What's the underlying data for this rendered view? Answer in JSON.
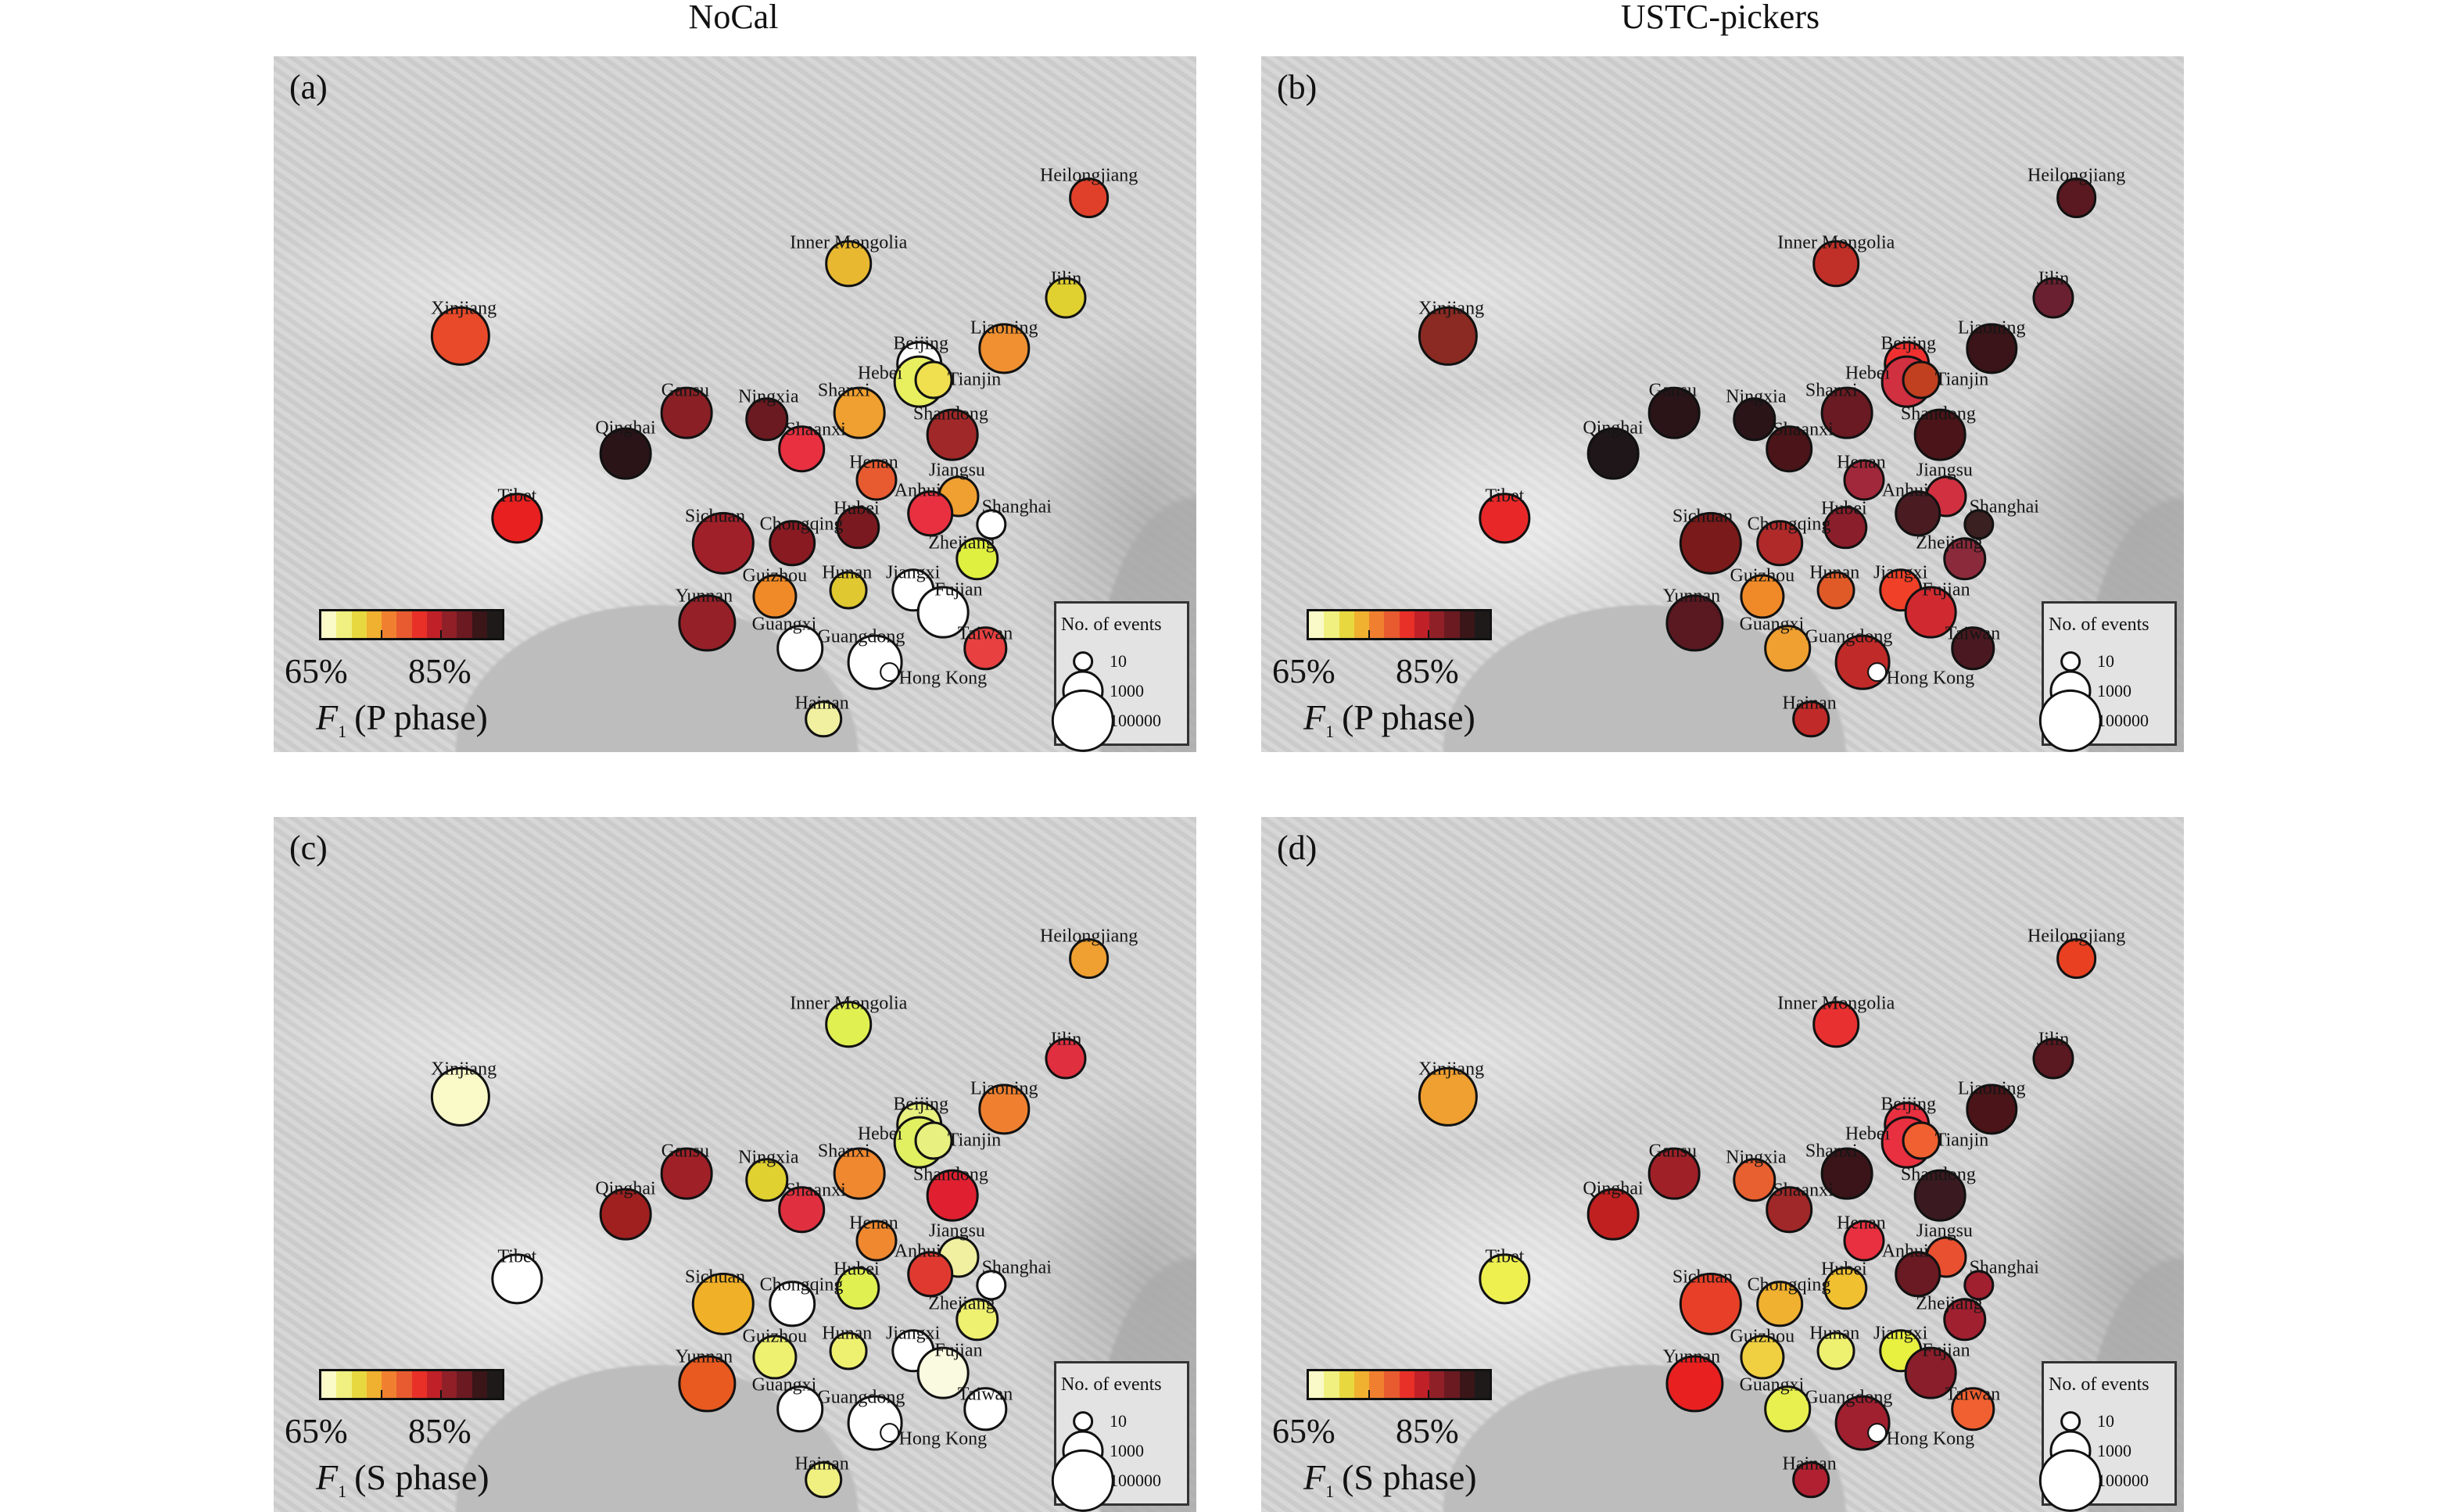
{
  "column_titles": [
    "NoCal",
    "USTC-pickers"
  ],
  "legend": {
    "title": "No. of events",
    "entries": [
      10,
      1000,
      100000
    ]
  },
  "colorbar": {
    "labels": [
      "65%",
      "85%"
    ],
    "colors": [
      "#fafac8",
      "#f0f080",
      "#e8d840",
      "#f0b030",
      "#f08030",
      "#e85a30",
      "#e83028",
      "#c02028",
      "#902028",
      "#6a1a20",
      "#3a1618",
      "#1e1a1a"
    ]
  },
  "panels": [
    {
      "letter": "(a)",
      "column": "NoCal",
      "f1_symbol": "F",
      "f1_sub": "1",
      "phase": "(P phase)"
    },
    {
      "letter": "(b)",
      "column": "USTC-pickers",
      "f1_symbol": "F",
      "f1_sub": "1",
      "phase": "(P phase)"
    },
    {
      "letter": "(c)",
      "column": "NoCal",
      "f1_symbol": "F",
      "f1_sub": "1",
      "phase": "(S phase)"
    },
    {
      "letter": "(d)",
      "column": "USTC-pickers",
      "f1_symbol": "F",
      "f1_sub": "1",
      "phase": "(S phase)"
    }
  ],
  "provinces": [
    {
      "name": "Heilongjiang",
      "events": 800,
      "colors": [
        "#e0402a",
        "#5a1820",
        "#f0a030",
        "#e84020"
      ]
    },
    {
      "name": "Inner Mongolia",
      "events": 3000,
      "colors": [
        "#e8b830",
        "#c03028",
        "#e0f050",
        "#e83030"
      ]
    },
    {
      "name": "Jilin",
      "events": 1000,
      "colors": [
        "#e0d030",
        "#6a2030",
        "#e03040",
        "#5a1820"
      ]
    },
    {
      "name": "Xinjiang",
      "events": 50000,
      "colors": [
        "#e84a2a",
        "#8a2a22",
        "#fafac8",
        "#f0a030"
      ]
    },
    {
      "name": "Liaoning",
      "events": 8000,
      "colors": [
        "#f09030",
        "#3a1418",
        "#f08030",
        "#4a1418"
      ]
    },
    {
      "name": "Beijing",
      "events": 3000,
      "colors": [
        "#ffffff",
        "#f03030",
        "#e8f080",
        "#e83040"
      ]
    },
    {
      "name": "Hebei",
      "events": 10000,
      "colors": [
        "#e8f060",
        "#d03040",
        "#e0f060",
        "#e83040"
      ]
    },
    {
      "name": "Tianjin",
      "events": 500,
      "colors": [
        "#f0e050",
        "#c04020",
        "#e8f080",
        "#f06030"
      ]
    },
    {
      "name": "Gansu",
      "events": 10000,
      "colors": [
        "#8a2025",
        "#2a1418",
        "#a02028",
        "#a02028"
      ]
    },
    {
      "name": "Ningxia",
      "events": 1500,
      "colors": [
        "#6a1a20",
        "#2a1418",
        "#e0d030",
        "#e86030"
      ]
    },
    {
      "name": "Shanxi",
      "events": 10000,
      "colors": [
        "#f0a030",
        "#6a1a22",
        "#f08830",
        "#3a1418"
      ]
    },
    {
      "name": "Shandong",
      "events": 10000,
      "colors": [
        "#a02828",
        "#4a1418",
        "#e02030",
        "#3a1a20"
      ]
    },
    {
      "name": "Qinghai",
      "events": 10000,
      "colors": [
        "#2a1418",
        "#1e1618",
        "#a02020",
        "#c02020"
      ]
    },
    {
      "name": "Shaanxi",
      "events": 3000,
      "colors": [
        "#e83040",
        "#4a1418",
        "#e03040",
        "#a02828"
      ]
    },
    {
      "name": "Henan",
      "events": 1000,
      "colors": [
        "#e85a30",
        "#a0283a",
        "#f08830",
        "#e83040"
      ]
    },
    {
      "name": "Jiangsu",
      "events": 1000,
      "colors": [
        "#f0a030",
        "#d03040",
        "#f0f0a0",
        "#e85030"
      ]
    },
    {
      "name": "Anhui",
      "events": 3000,
      "colors": [
        "#e83040",
        "#4a1c22",
        "#e03a30",
        "#6a1a22"
      ]
    },
    {
      "name": "Shanghai",
      "events": 100,
      "colors": [
        "#ffffff",
        "#3a2020",
        "#ffffff",
        "#a02030"
      ]
    },
    {
      "name": "Tibet",
      "events": 8000,
      "colors": [
        "#e82020",
        "#e82828",
        "#ffffff",
        "#eef050"
      ]
    },
    {
      "name": "Hubei",
      "events": 1500,
      "colors": [
        "#7a1a20",
        "#8a1e2a",
        "#e0f050",
        "#f0c030"
      ]
    },
    {
      "name": "Sichuan",
      "events": 100000,
      "colors": [
        "#a0202a",
        "#7a1a1a",
        "#f0b028",
        "#e84028"
      ]
    },
    {
      "name": "Chongqing",
      "events": 3000,
      "colors": [
        "#8a1a22",
        "#b02a2a",
        "#ffffff",
        "#f0b030"
      ]
    },
    {
      "name": "Zhejiang",
      "events": 1500,
      "colors": [
        "#e0f040",
        "#8a2a3a",
        "#eef070",
        "#a02030"
      ]
    },
    {
      "name": "Hunan",
      "events": 500,
      "colors": [
        "#e0c830",
        "#e05a28",
        "#eef070",
        "#eef070"
      ]
    },
    {
      "name": "Guizhou",
      "events": 2000,
      "colors": [
        "#f08a28",
        "#f08a28",
        "#eef070",
        "#f0d040"
      ]
    },
    {
      "name": "Jiangxi",
      "events": 1500,
      "colors": [
        "#ffffff",
        "#f04028",
        "#ffffff",
        "#e8f040"
      ]
    },
    {
      "name": "Fujian",
      "events": 10000,
      "colors": [
        "#ffffff",
        "#d02a30",
        "#fafae0",
        "#8a1e2a"
      ]
    },
    {
      "name": "Yunnan",
      "events": 30000,
      "colors": [
        "#962028",
        "#5a1820",
        "#e85a20",
        "#e82020"
      ]
    },
    {
      "name": "Guangxi",
      "events": 3000,
      "colors": [
        "#ffffff",
        "#f0a030",
        "#ffffff",
        "#e8f050"
      ]
    },
    {
      "name": "Guangdong",
      "events": 20000,
      "colors": [
        "#ffffff",
        "#c02a28",
        "#ffffff",
        "#a02030"
      ]
    },
    {
      "name": "Taiwan",
      "events": 1500,
      "colors": [
        "#e84040",
        "#4a1820",
        "#ffffff",
        "#f06030"
      ]
    },
    {
      "name": "Hong Kong",
      "events": 10,
      "colors": [
        "#ffffff",
        "#ffffff",
        "#ffffff",
        "#ffffff"
      ]
    },
    {
      "name": "Hainan",
      "events": 400,
      "colors": [
        "#f0f0a0",
        "#c02a28",
        "#f0f080",
        "#b02030"
      ]
    }
  ]
}
